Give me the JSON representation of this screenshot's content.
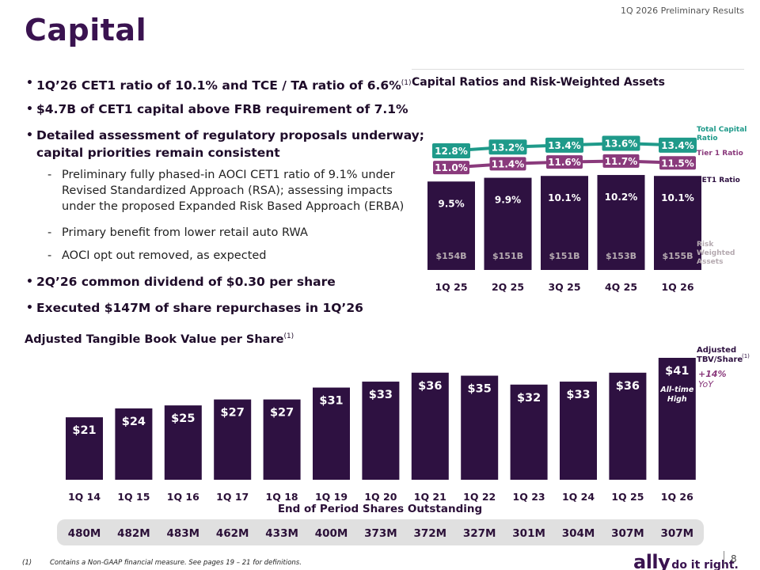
{
  "header": {
    "label": "1Q 2026 Preliminary Results"
  },
  "title": "Capital",
  "bullets": [
    {
      "text": "1Q’26 CET1 ratio of 10.1% and TCE / TA ratio of 6.6%",
      "sup": "(1)"
    },
    {
      "text": "$4.7B of CET1 capital above FRB requirement of 7.1%"
    },
    {
      "line1": "Detailed assessment of regulatory proposals underway;",
      "line2": "capital priorities remain consistent"
    },
    {
      "text": "2Q’26 common dividend of $0.30 per share"
    },
    {
      "text": "Executed $147M of share repurchases in 1Q’26"
    }
  ],
  "sub_bullets": [
    {
      "line1": "Preliminary fully phased-in AOCI CET1 ratio of 9.1% under",
      "line2": "Revised Standardized Approach (RSA); assessing impacts",
      "line3": "under the proposed Expanded Risk Based Approach (ERBA)"
    },
    {
      "line1": "Primary benefit from lower retail auto RWA"
    },
    {
      "line1": "AOCI opt out removed, as expected"
    }
  ],
  "chart_data": [
    {
      "type": "bar",
      "title": "Capital Ratios and Risk-Weighted Assets",
      "categories": [
        "1Q 25",
        "2Q 25",
        "3Q 25",
        "4Q 25",
        "1Q 26"
      ],
      "series": [
        {
          "name": "CET1 Ratio",
          "values": [
            9.5,
            9.9,
            10.1,
            10.2,
            10.1
          ],
          "labels": [
            "9.5%",
            "9.9%",
            "10.1%",
            "10.2%",
            "10.1%"
          ],
          "color": "#2e1141"
        },
        {
          "name": "Tier 1 Ratio",
          "values": [
            11.0,
            11.4,
            11.6,
            11.7,
            11.5
          ],
          "labels": [
            "11.0%",
            "11.4%",
            "11.6%",
            "11.7%",
            "11.5%"
          ],
          "color": "#8a3a7c",
          "render": "line"
        },
        {
          "name": "Total Capital Ratio",
          "values": [
            12.8,
            13.2,
            13.4,
            13.6,
            13.4
          ],
          "labels": [
            "12.8%",
            "13.2%",
            "13.4%",
            "13.6%",
            "13.4%"
          ],
          "color": "#1f9a8a",
          "render": "line"
        },
        {
          "name": "Risk Weighted Assets",
          "values": [
            154,
            151,
            151,
            153,
            155
          ],
          "labels": [
            "$154B",
            "$151B",
            "$151B",
            "$153B",
            "$155B"
          ],
          "unit": "$B",
          "color": "#b5aab0"
        }
      ],
      "legend": {
        "total_capital": {
          "line1": "Total Capital",
          "line2": "Ratio"
        },
        "tier1": "Tier 1 Ratio",
        "cet1": "CET1 Ratio",
        "rwa": {
          "line1": "Risk",
          "line2": "Weighted",
          "line3": "Assets"
        }
      },
      "legend_position": "right",
      "ylim": [
        0,
        14.2
      ],
      "grid": false
    },
    {
      "type": "bar",
      "title": "Adjusted Tangible Book Value per Share",
      "title_sup": "(1)",
      "categories": [
        "1Q 14",
        "1Q 15",
        "1Q 16",
        "1Q 17",
        "1Q 18",
        "1Q 19",
        "1Q 20",
        "1Q 21",
        "1Q 22",
        "1Q 23",
        "1Q 24",
        "1Q 25",
        "1Q 26"
      ],
      "values": [
        21,
        24,
        25,
        27,
        27,
        31,
        33,
        36,
        35,
        32,
        33,
        36,
        41
      ],
      "value_labels": [
        "$21",
        "$24",
        "$25",
        "$27",
        "$27",
        "$31",
        "$33",
        "$36",
        "$35",
        "$32",
        "$33",
        "$36",
        "$41"
      ],
      "color": "#2e1141",
      "ylim": [
        0,
        41
      ],
      "legend": {
        "line1": "Adjusted",
        "line2": "TBV/Share",
        "sup": "(1)"
      },
      "annotations": {
        "all_time_line1": "All-time",
        "all_time_line2": "High",
        "yoy_change": "+14%",
        "yoy_label": "YoY"
      },
      "grid": false
    }
  ],
  "shares_outstanding": {
    "title": "End of Period Shares Outstanding",
    "values": [
      "480M",
      "482M",
      "483M",
      "462M",
      "433M",
      "400M",
      "373M",
      "372M",
      "327M",
      "301M",
      "304M",
      "307M",
      "307M"
    ]
  },
  "footnote": {
    "mark": "(1)",
    "text": "Contains a Non-GAAP financial measure. See pages 19 – 21 for definitions."
  },
  "logo": {
    "brand": "ally",
    "tagline": "do it right."
  },
  "page_number": "8",
  "colors": {
    "primary": "#2e1141",
    "teal": "#1f9a8a",
    "plum": "#8a3a7c",
    "rwa_text": "#b5aab0",
    "band": "#e0e0e0"
  }
}
